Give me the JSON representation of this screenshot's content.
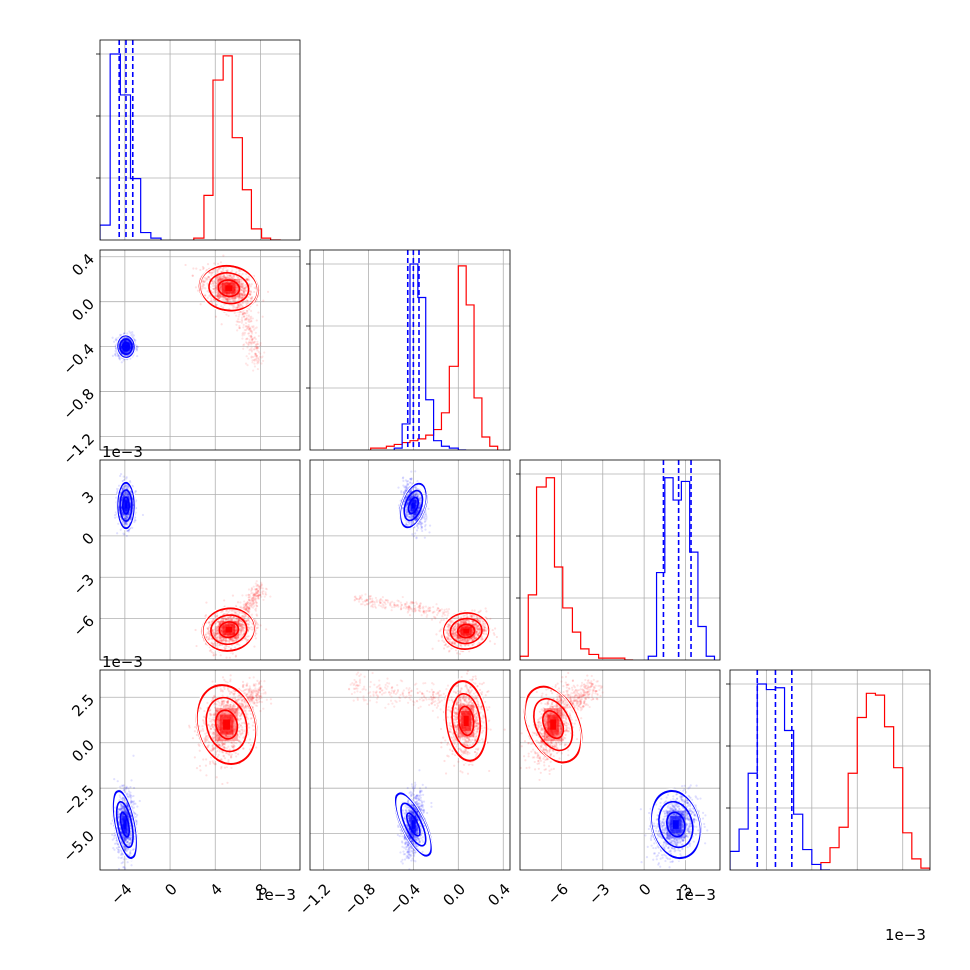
{
  "chart_data": {
    "type": "corner",
    "colors": {
      "blue": "#0000ff",
      "red": "#ff0000",
      "grid": "#b0b0b0",
      "frame": "#000000"
    },
    "parameters": [
      {
        "range": [
          -6.2,
          11.5
        ],
        "ticks": [
          -4,
          0,
          4,
          8
        ],
        "tick_labels": [
          "−4",
          "0",
          "4",
          "8"
        ],
        "offset_label": "1e−3"
      },
      {
        "range": [
          -1.32,
          0.46
        ],
        "ticks": [
          -1.2,
          -0.8,
          -0.4,
          0.0,
          0.4
        ],
        "tick_labels": [
          "−1.2",
          "−0.8",
          "−0.4",
          "0.0",
          "0.4"
        ],
        "offset_label": "1e−3"
      },
      {
        "range": [
          -9.0,
          5.5
        ],
        "ticks": [
          -6,
          -3,
          0,
          3
        ],
        "tick_labels": [
          "−6",
          "−3",
          "0",
          "3"
        ],
        "offset_label": "1e−3"
      },
      {
        "range": [
          -7.0,
          4.0
        ],
        "ticks": [
          -5.0,
          -2.5,
          0.0,
          2.5
        ],
        "tick_labels": [
          "−5.0",
          "−2.5",
          "0.0",
          "2.5"
        ],
        "offset_label": "1e−3"
      }
    ],
    "histograms": [
      {
        "param": 0,
        "blue": {
          "edges": [
            -6.2,
            -5.3,
            -4.4,
            -3.5,
            -2.6,
            -1.7,
            -0.8
          ],
          "counts": [
            0.08,
            1.0,
            0.78,
            0.33,
            0.04,
            0.01
          ],
          "quantiles": [
            -4.5,
            -3.9,
            -3.3
          ]
        },
        "red": {
          "edges": [
            2.1,
            3.0,
            3.8,
            4.7,
            5.5,
            6.4,
            7.2,
            8.1,
            8.9,
            9.8
          ],
          "counts": [
            0.01,
            0.24,
            0.86,
            0.99,
            0.55,
            0.27,
            0.06,
            0.01,
            0.0
          ]
        }
      },
      {
        "param": 1,
        "blue": {
          "edges": [
            -0.57,
            -0.5,
            -0.43,
            -0.36,
            -0.29,
            -0.22,
            -0.15,
            -0.08,
            0.0,
            0.07
          ],
          "counts": [
            0.01,
            0.14,
            1.0,
            0.82,
            0.27,
            0.05,
            0.02,
            0.01,
            0.0
          ],
          "quantiles": [
            -0.45,
            -0.4,
            -0.35
          ]
        },
        "red": {
          "edges": [
            -0.78,
            -0.71,
            -0.64,
            -0.57,
            -0.5,
            -0.43,
            -0.36,
            -0.29,
            -0.22,
            -0.15,
            -0.08,
            0.0,
            0.07,
            0.14,
            0.21,
            0.28,
            0.35
          ],
          "counts": [
            0.01,
            0.01,
            0.02,
            0.03,
            0.04,
            0.05,
            0.06,
            0.08,
            0.11,
            0.2,
            0.45,
            0.99,
            0.78,
            0.28,
            0.07,
            0.02
          ]
        }
      },
      {
        "param": 2,
        "blue": {
          "edges": [
            0.3,
            0.9,
            1.5,
            2.1,
            2.7,
            3.3,
            3.9,
            4.5,
            5.1
          ],
          "counts": [
            0.02,
            0.47,
            0.98,
            0.86,
            0.96,
            0.58,
            0.18,
            0.02
          ],
          "quantiles": [
            1.4,
            2.5,
            3.4
          ]
        },
        "red": {
          "edges": [
            -9.0,
            -8.4,
            -7.8,
            -7.1,
            -6.5,
            -5.9,
            -5.2,
            -4.6,
            -4.0,
            -3.3,
            -2.7,
            -2.1,
            -1.4,
            -0.8
          ],
          "counts": [
            0.02,
            0.35,
            0.93,
            0.98,
            0.5,
            0.28,
            0.15,
            0.06,
            0.03,
            0.01,
            0.01,
            0.01,
            0.0
          ]
        }
      },
      {
        "param": 3,
        "blue": {
          "edges": [
            -7.0,
            -6.5,
            -6.0,
            -5.5,
            -5.0,
            -4.5,
            -4.0,
            -3.5,
            -3.0,
            -2.5,
            -2.0,
            -1.5
          ],
          "counts": [
            0.1,
            0.22,
            0.52,
            1.0,
            0.97,
            0.98,
            0.75,
            0.3,
            0.11,
            0.03,
            0.0
          ],
          "quantiles": [
            -5.5,
            -4.5,
            -3.6
          ]
        },
        "red": {
          "edges": [
            -2.0,
            -1.5,
            -1.0,
            -0.5,
            0.0,
            0.5,
            1.0,
            1.5,
            2.0,
            2.5,
            3.0,
            3.5,
            4.0
          ],
          "counts": [
            0.04,
            0.12,
            0.23,
            0.52,
            0.82,
            0.95,
            0.94,
            0.77,
            0.55,
            0.2,
            0.06,
            0.01
          ]
        }
      }
    ],
    "pairs": [
      {
        "x": 0,
        "y": 1,
        "blue": {
          "center": [
            -3.9,
            -0.4
          ],
          "sigma": [
            0.35,
            0.045
          ],
          "rho": 0.1
        },
        "red": {
          "center": [
            5.2,
            0.12
          ],
          "sigma": [
            1.1,
            0.09
          ],
          "rho": -0.35,
          "tail": {
            "from": [
              6.2,
              -0.05
            ],
            "to": [
              7.8,
              -0.55
            ]
          }
        }
      },
      {
        "x": 0,
        "y": 2,
        "blue": {
          "center": [
            -3.9,
            2.2
          ],
          "sigma": [
            0.35,
            0.75
          ],
          "rho": 0.0
        },
        "red": {
          "center": [
            5.2,
            -6.8
          ],
          "sigma": [
            1.0,
            0.7
          ],
          "rho": 0.3,
          "tail": {
            "from": [
              6.5,
              -5.6
            ],
            "to": [
              8.0,
              -3.8
            ]
          }
        }
      },
      {
        "x": 0,
        "y": 3,
        "blue": {
          "center": [
            -4.0,
            -4.5
          ],
          "sigma": [
            0.4,
            0.85
          ],
          "rho": 0.1
        },
        "red": {
          "center": [
            5.0,
            1.0
          ],
          "sigma": [
            1.1,
            1.0
          ],
          "rho": 0.3,
          "tail": {
            "from": [
              6.2,
              2.0
            ],
            "to": [
              8.0,
              2.9
            ]
          }
        }
      },
      {
        "x": 1,
        "y": 2,
        "blue": {
          "center": [
            -0.4,
            2.2
          ],
          "sigma": [
            0.045,
            0.75
          ],
          "rho": -0.3
        },
        "red": {
          "center": [
            0.07,
            -6.9
          ],
          "sigma": [
            0.09,
            0.6
          ],
          "rho": 0.2,
          "tail": {
            "from": [
              -0.1,
              -5.6
            ],
            "to": [
              -0.9,
              -4.6
            ]
          }
        }
      },
      {
        "x": 1,
        "y": 3,
        "blue": {
          "center": [
            -0.4,
            -4.5
          ],
          "sigma": [
            0.045,
            0.85
          ],
          "rho": 0.3
        },
        "red": {
          "center": [
            0.07,
            1.2
          ],
          "sigma": [
            0.08,
            1.0
          ],
          "rho": 0.1,
          "tail": {
            "from": [
              -0.1,
              2.4
            ],
            "to": [
              -0.95,
              3.0
            ]
          }
        }
      },
      {
        "x": 2,
        "y": 3,
        "blue": {
          "center": [
            2.3,
            -4.5
          ],
          "sigma": [
            0.75,
            0.85
          ],
          "rho": 0.3
        },
        "red": {
          "center": [
            -6.6,
            1.0
          ],
          "sigma": [
            0.75,
            1.0
          ],
          "rho": 0.5,
          "tail": {
            "from": [
              -5.2,
              2.1
            ],
            "to": [
              -3.5,
              3.1
            ]
          }
        }
      }
    ]
  }
}
